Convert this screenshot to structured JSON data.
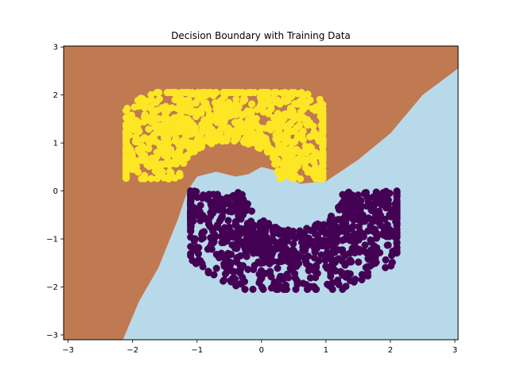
{
  "chart_data": {
    "type": "scatter",
    "title": "Decision Boundary with Training Data",
    "xlabel": "",
    "ylabel": "",
    "xlim": [
      -3.07,
      3.05
    ],
    "ylim": [
      -3.1,
      3.02
    ],
    "x_ticks": [
      -3,
      -2,
      -1,
      0,
      1,
      2,
      3
    ],
    "y_ticks": [
      3,
      2,
      1,
      0,
      -1,
      -2,
      -3
    ],
    "x_tick_labels": [
      "−3",
      "−2",
      "−1",
      "0",
      "1",
      "2",
      "3"
    ],
    "y_tick_labels": [
      "3",
      "2",
      "1",
      "0",
      "−1",
      "−2",
      "−3"
    ],
    "grid": false,
    "legend": "none",
    "decision_regions": [
      {
        "class": 0,
        "color": "#b8d9ea"
      },
      {
        "class": 1,
        "color": "#c07a52"
      }
    ],
    "decision_boundary": [
      [
        -2.15,
        -3.1
      ],
      [
        -1.9,
        -2.3
      ],
      [
        -1.6,
        -1.6
      ],
      [
        -1.3,
        -0.6
      ],
      [
        -1.15,
        0.0
      ],
      [
        -1.0,
        0.3
      ],
      [
        -0.7,
        0.4
      ],
      [
        -0.4,
        0.3
      ],
      [
        -0.2,
        0.35
      ],
      [
        0.0,
        0.5
      ],
      [
        0.3,
        0.4
      ],
      [
        0.6,
        0.15
      ],
      [
        1.0,
        0.2
      ],
      [
        1.5,
        0.65
      ],
      [
        2.0,
        1.2
      ],
      [
        2.5,
        2.0
      ],
      [
        3.05,
        2.55
      ]
    ],
    "series": [
      {
        "class": 1,
        "color": "#fde725",
        "shape": "upper half-moon",
        "center": [
          -0.5,
          0.25
        ],
        "radius": 1.0,
        "angle_range_deg": [
          0,
          180
        ],
        "x_range": [
          -2.1,
          0.95
        ],
        "y_range": [
          -0.5,
          2.05
        ]
      },
      {
        "class": 0,
        "color": "#440154",
        "shape": "lower half-moon",
        "center": [
          0.5,
          0.0
        ],
        "radius": 1.0,
        "angle_range_deg": [
          180,
          360
        ],
        "x_range": [
          -1.1,
          2.1
        ],
        "y_range": [
          -2.05,
          0.5
        ]
      }
    ],
    "marker_edge_color": "#ffffff"
  }
}
